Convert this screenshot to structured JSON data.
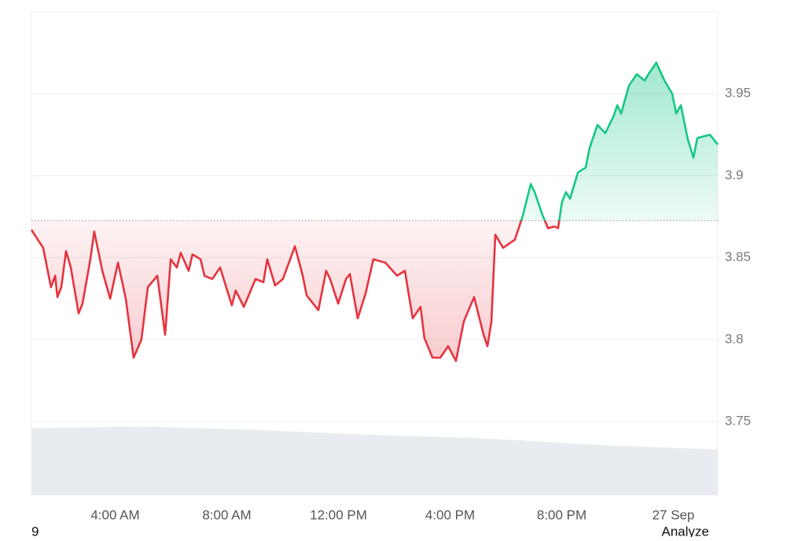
{
  "chart_data": {
    "type": "baseline-line",
    "x": [
      1.0,
      1.42,
      1.7,
      1.85,
      1.93,
      2.07,
      2.24,
      2.41,
      2.69,
      2.83,
      3.11,
      3.25,
      3.54,
      3.82,
      4.1,
      4.38,
      4.66,
      4.94,
      5.17,
      5.51,
      5.79,
      5.99,
      6.21,
      6.35,
      6.63,
      6.77,
      7.06,
      7.2,
      7.48,
      7.76,
      8.18,
      8.32,
      8.61,
      9.03,
      9.31,
      9.45,
      9.73,
      10.01,
      10.44,
      10.72,
      10.86,
      11.28,
      11.56,
      11.7,
      11.99,
      12.27,
      12.41,
      12.69,
      12.97,
      13.25,
      13.68,
      14.1,
      14.38,
      14.66,
      14.94,
      15.08,
      15.37,
      15.65,
      15.93,
      16.21,
      16.49,
      16.86,
      17.2,
      17.34,
      17.48,
      17.62,
      17.9,
      18.32,
      18.46,
      18.61,
      18.89,
      19.03,
      19.31,
      19.51,
      19.73,
      19.87,
      20.01,
      20.15,
      20.3,
      20.58,
      20.86,
      21.0,
      21.28,
      21.56,
      21.85,
      21.99,
      22.13,
      22.41,
      22.69,
      22.97,
      23.11,
      23.39,
      23.68,
      23.96,
      24.1,
      24.27,
      24.52,
      24.72,
      24.86,
      25.08,
      25.31,
      25.59
    ],
    "values": [
      3.867,
      3.856,
      3.832,
      3.839,
      3.826,
      3.832,
      3.854,
      3.844,
      3.816,
      3.822,
      3.849,
      3.866,
      3.842,
      3.825,
      3.847,
      3.825,
      3.789,
      3.8,
      3.832,
      3.839,
      3.803,
      3.849,
      3.844,
      3.853,
      3.842,
      3.852,
      3.849,
      3.839,
      3.837,
      3.844,
      3.821,
      3.83,
      3.82,
      3.837,
      3.835,
      3.849,
      3.833,
      3.837,
      3.857,
      3.839,
      3.827,
      3.818,
      3.842,
      3.837,
      3.822,
      3.837,
      3.84,
      3.813,
      3.828,
      3.849,
      3.847,
      3.839,
      3.842,
      3.813,
      3.82,
      3.801,
      3.789,
      3.789,
      3.796,
      3.787,
      3.811,
      3.826,
      3.803,
      3.796,
      3.811,
      3.864,
      3.856,
      3.861,
      3.868,
      3.876,
      3.895,
      3.89,
      3.876,
      3.868,
      3.869,
      3.868,
      3.884,
      3.89,
      3.886,
      3.902,
      3.905,
      3.917,
      3.931,
      3.926,
      3.936,
      3.943,
      3.938,
      3.955,
      3.962,
      3.958,
      3.962,
      3.969,
      3.958,
      3.95,
      3.938,
      3.943,
      3.922,
      3.911,
      3.923,
      3.924,
      3.925,
      3.919
    ],
    "baseline": 3.8726,
    "up_color": "#16c784",
    "down_color": "#e5343f",
    "volume": {
      "color": "#e8ecf0",
      "x": [
        1,
        5,
        9,
        13,
        17,
        21,
        25.59
      ],
      "values": [
        3.746,
        3.747,
        3.745,
        3.742,
        3.74,
        3.736,
        3.733
      ]
    },
    "xlim": [
      1.0,
      25.59
    ],
    "ylim": [
      3.705,
      4.0
    ],
    "yticks": [
      3.75,
      3.8,
      3.85,
      3.9,
      3.95
    ],
    "xticks": [
      {
        "value": 4,
        "label": "4:00 AM"
      },
      {
        "value": 8,
        "label": "8:00 AM"
      },
      {
        "value": 12,
        "label": "12:00 PM"
      },
      {
        "value": 16,
        "label": "4:00 PM"
      },
      {
        "value": 20,
        "label": "8:00 PM"
      },
      {
        "value": 24,
        "label": "27 Sep"
      }
    ],
    "grid": true
  },
  "footer": {
    "left": "9",
    "right": "Analyze"
  }
}
